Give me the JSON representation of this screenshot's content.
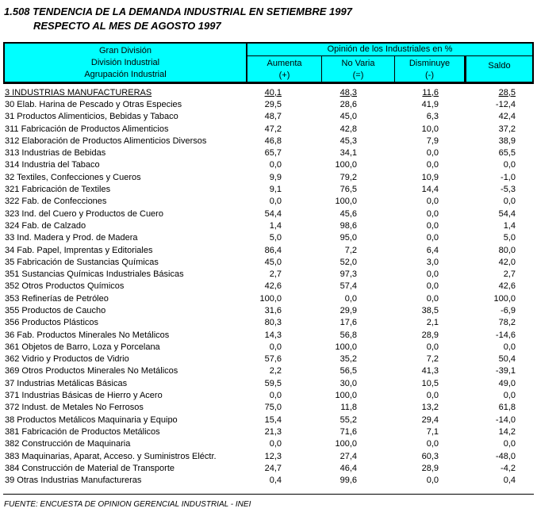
{
  "title": {
    "line1": "1.508 TENDENCIA DE LA DEMANDA INDUSTRIAL EN SETIEMBRE 1997",
    "line2": "RESPECTO AL MES DE AGOSTO 1997"
  },
  "colors": {
    "header_bg": "#00FFFF",
    "border": "#000000",
    "text": "#000000",
    "page_bg": "#FFFFFF"
  },
  "table": {
    "header": {
      "left_lines": [
        "Gran División",
        "División Industrial",
        "Agrupación Industrial"
      ],
      "group_title": "Opinión de los Industriales en %",
      "columns": [
        {
          "label": "Aumenta",
          "sign": "(+)"
        },
        {
          "label": "No Varia",
          "sign": "(=)"
        },
        {
          "label": "Disminuye",
          "sign": "(-)"
        },
        {
          "label": "Saldo",
          "sign": ""
        }
      ]
    },
    "rows": [
      {
        "label": "3 INDUSTRIAS MANUFACTURERAS",
        "values": [
          "40,1",
          "48,3",
          "11,6",
          "28,5"
        ],
        "emphasis": true
      },
      {
        "label": "30 Elab. Harina de Pescado y Otras Especies",
        "values": [
          "29,5",
          "28,6",
          "41,9",
          "-12,4"
        ]
      },
      {
        "label": "31 Productos Alimenticios, Bebidas y Tabaco",
        "values": [
          "48,7",
          "45,0",
          "6,3",
          "42,4"
        ]
      },
      {
        "label": "311 Fabricación de Productos Alimenticios",
        "values": [
          "47,2",
          "42,8",
          "10,0",
          "37,2"
        ]
      },
      {
        "label": "312 Elaboración de Productos Alimenticios Diversos",
        "values": [
          "46,8",
          "45,3",
          "7,9",
          "38,9"
        ]
      },
      {
        "label": "313 Industrias de Bebidas",
        "values": [
          "65,7",
          "34,1",
          "0,0",
          "65,5"
        ]
      },
      {
        "label": "314 Industria del Tabaco",
        "values": [
          "0,0",
          "100,0",
          "0,0",
          "0,0"
        ]
      },
      {
        "label": "32 Textiles, Confecciones y Cueros",
        "values": [
          "9,9",
          "79,2",
          "10,9",
          "-1,0"
        ]
      },
      {
        "label": "321 Fabricación de Textiles",
        "values": [
          "9,1",
          "76,5",
          "14,4",
          "-5,3"
        ]
      },
      {
        "label": "322 Fab. de Confecciones",
        "values": [
          "0,0",
          "100,0",
          "0,0",
          "0,0"
        ]
      },
      {
        "label": "323 Ind. del Cuero y Productos de Cuero",
        "values": [
          "54,4",
          "45,6",
          "0,0",
          "54,4"
        ]
      },
      {
        "label": "324 Fab. de Calzado",
        "values": [
          "1,4",
          "98,6",
          "0,0",
          "1,4"
        ]
      },
      {
        "label": "33 Ind. Madera y Prod. de Madera",
        "values": [
          "5,0",
          "95,0",
          "0,0",
          "5,0"
        ]
      },
      {
        "label": "34 Fab. Papel, Imprentas y Editoriales",
        "values": [
          "86,4",
          "7,2",
          "6,4",
          "80,0"
        ]
      },
      {
        "label": "35 Fabricación de Sustancias Químicas",
        "values": [
          "45,0",
          "52,0",
          "3,0",
          "42,0"
        ]
      },
      {
        "label": "351 Sustancias Químicas Industriales Básicas",
        "values": [
          "2,7",
          "97,3",
          "0,0",
          "2,7"
        ]
      },
      {
        "label": "352 Otros Productos Químicos",
        "values": [
          "42,6",
          "57,4",
          "0,0",
          "42,6"
        ]
      },
      {
        "label": "353 Refinerías de Petróleo",
        "values": [
          "100,0",
          "0,0",
          "0,0",
          "100,0"
        ]
      },
      {
        "label": "355 Productos de Caucho",
        "values": [
          "31,6",
          "29,9",
          "38,5",
          "-6,9"
        ]
      },
      {
        "label": "356 Productos Plásticos",
        "values": [
          "80,3",
          "17,6",
          "2,1",
          "78,2"
        ]
      },
      {
        "label": "36 Fab. Productos Minerales No Metálicos",
        "values": [
          "14,3",
          "56,8",
          "28,9",
          "-14,6"
        ]
      },
      {
        "label": "361 Objetos de Barro, Loza y Porcelana",
        "values": [
          "0,0",
          "100,0",
          "0,0",
          "0,0"
        ]
      },
      {
        "label": "362 Vidrio y Productos de Vidrio",
        "values": [
          "57,6",
          "35,2",
          "7,2",
          "50,4"
        ]
      },
      {
        "label": "369 Otros Productos Minerales No Metálicos",
        "values": [
          "2,2",
          "56,5",
          "41,3",
          "-39,1"
        ]
      },
      {
        "label": "37 Industrias Metálicas Básicas",
        "values": [
          "59,5",
          "30,0",
          "10,5",
          "49,0"
        ]
      },
      {
        "label": "371 Industrias Básicas de Hierro y Acero",
        "values": [
          "0,0",
          "100,0",
          "0,0",
          "0,0"
        ]
      },
      {
        "label": "372 Indust. de Metales No Ferrosos",
        "values": [
          "75,0",
          "11,8",
          "13,2",
          "61,8"
        ]
      },
      {
        "label": "38 Productos Metálicos Maquinaria y Equipo",
        "values": [
          "15,4",
          "55,2",
          "29,4",
          "-14,0"
        ]
      },
      {
        "label": "381 Fabricación de Productos Metálicos",
        "values": [
          "21,3",
          "71,6",
          "7,1",
          "14,2"
        ]
      },
      {
        "label": "382 Construcción de Maquinaria",
        "values": [
          "0,0",
          "100,0",
          "0,0",
          "0,0"
        ]
      },
      {
        "label": "383 Maquinarias, Aparat, Acceso. y Suministros Eléctr.",
        "values": [
          "12,3",
          "27,4",
          "60,3",
          "-48,0"
        ]
      },
      {
        "label": "384 Construcción de Material de Transporte",
        "values": [
          "24,7",
          "46,4",
          "28,9",
          "-4,2"
        ]
      },
      {
        "label": "39 Otras Industrias Manufactureras",
        "values": [
          "0,4",
          "99,6",
          "0,0",
          "0,4"
        ]
      }
    ]
  },
  "footer": {
    "source": "FUENTE: ENCUESTA DE OPINION GERENCIAL INDUSTRIAL - INEI"
  }
}
